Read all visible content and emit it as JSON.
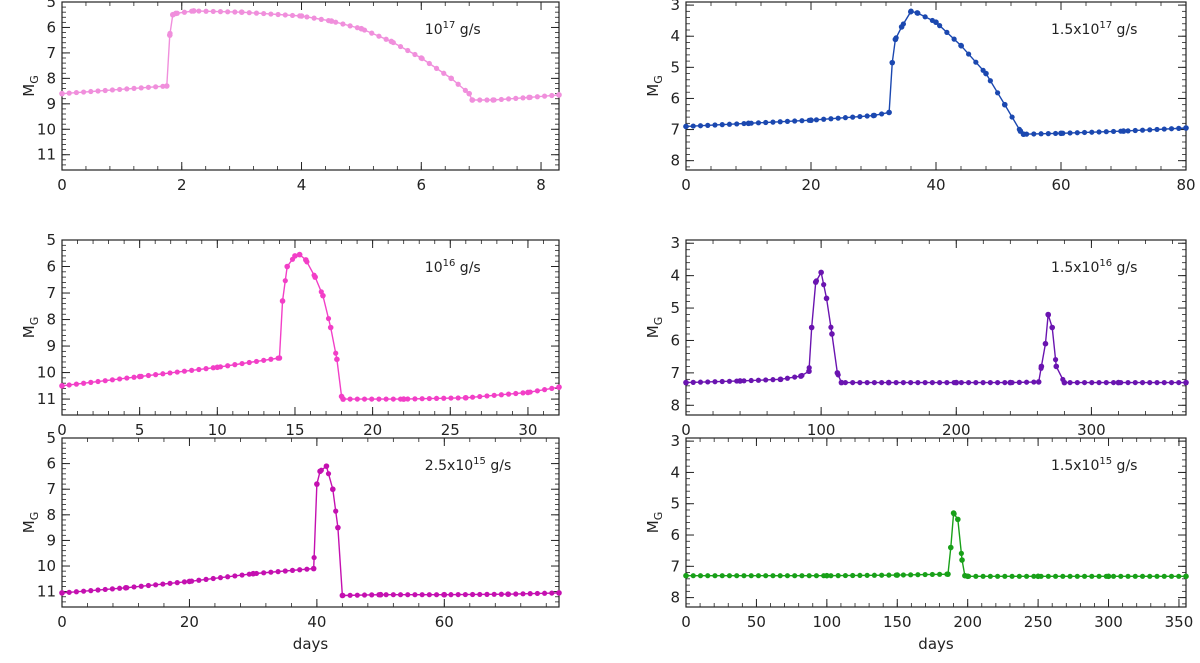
{
  "chart_data": [
    {
      "type": "line",
      "annotation": {
        "base": "10",
        "exp": "17",
        "unit": " g/s"
      },
      "ylabel": "M",
      "ylabel_sub": "G",
      "xlabel": "",
      "xlim": [
        0,
        8.3
      ],
      "ylim": [
        11.6,
        5
      ],
      "y_inverted": true,
      "xticks": [
        0,
        2,
        4,
        6,
        8
      ],
      "yticks": [
        5,
        6,
        7,
        8,
        9,
        10,
        11
      ],
      "color": "#f08fdc",
      "series": [
        {
          "x": [
            0,
            1.75,
            1.8,
            1.85,
            1.9,
            2.2,
            3.0,
            4.0,
            4.5,
            5.0,
            5.5,
            6.0,
            6.5,
            6.8,
            6.85,
            7.2,
            7.8,
            8.3
          ],
          "y": [
            8.6,
            8.3,
            6.3,
            5.5,
            5.45,
            5.35,
            5.4,
            5.55,
            5.75,
            6.05,
            6.55,
            7.2,
            8.0,
            8.6,
            8.85,
            8.85,
            8.75,
            8.65
          ]
        }
      ]
    },
    {
      "type": "line",
      "annotation": {
        "base": "1.5x10",
        "exp": "17",
        "unit": " g/s"
      },
      "ylabel": "M",
      "ylabel_sub": "G",
      "xlabel": "",
      "xlim": [
        0,
        80
      ],
      "ylim": [
        8.3,
        2.9
      ],
      "y_inverted": true,
      "xticks": [
        0,
        20,
        40,
        60,
        80
      ],
      "yticks": [
        3,
        4,
        5,
        6,
        7,
        8
      ],
      "color": "#1b48b0",
      "series": [
        {
          "x": [
            0,
            10,
            20,
            30,
            32.5,
            33,
            33.5,
            34.5,
            36,
            37,
            40,
            44,
            48,
            51,
            53.5,
            54,
            60,
            70,
            80
          ],
          "y": [
            6.9,
            6.8,
            6.7,
            6.55,
            6.45,
            4.85,
            4.1,
            3.7,
            3.2,
            3.25,
            3.55,
            4.3,
            5.2,
            6.2,
            7.05,
            7.15,
            7.12,
            7.05,
            6.95
          ]
        }
      ]
    },
    {
      "type": "line",
      "annotation": {
        "base": "10",
        "exp": "16",
        "unit": " g/s"
      },
      "ylabel": "M",
      "ylabel_sub": "G",
      "xlabel": "",
      "xlim": [
        0,
        32
      ],
      "ylim": [
        11.6,
        5
      ],
      "y_inverted": true,
      "xticks": [
        0,
        5,
        10,
        15,
        20,
        25,
        30
      ],
      "yticks": [
        5,
        6,
        7,
        8,
        9,
        10,
        11
      ],
      "color": "#f23fc7",
      "series": [
        {
          "x": [
            0,
            5,
            10,
            14,
            14.2,
            14.5,
            15.0,
            15.3,
            15.7,
            16.3,
            16.8,
            17.3,
            17.7,
            18.0,
            18.1,
            22,
            26,
            30,
            32
          ],
          "y": [
            10.5,
            10.15,
            9.8,
            9.45,
            7.3,
            6.0,
            5.6,
            5.55,
            5.75,
            6.4,
            7.1,
            8.3,
            9.5,
            10.9,
            11.0,
            11.0,
            10.95,
            10.75,
            10.55
          ]
        }
      ]
    },
    {
      "type": "line",
      "annotation": {
        "base": "1.5x10",
        "exp": "16",
        "unit": " g/s"
      },
      "ylabel": "M",
      "ylabel_sub": "G",
      "xlabel": "",
      "xlim": [
        0,
        370
      ],
      "ylim": [
        8.3,
        2.9
      ],
      "y_inverted": true,
      "xticks": [
        0,
        100,
        200,
        300
      ],
      "yticks": [
        3,
        4,
        5,
        6,
        7,
        8
      ],
      "color": "#6a14b0",
      "series": [
        {
          "x": [
            0,
            40,
            70,
            85,
            91,
            93,
            96,
            100,
            104,
            108,
            112,
            115,
            150,
            200,
            240,
            261,
            263,
            266,
            268,
            271,
            274,
            280,
            320,
            370
          ],
          "y": [
            7.3,
            7.25,
            7.2,
            7.1,
            6.95,
            5.6,
            4.2,
            3.9,
            4.7,
            5.8,
            7.0,
            7.3,
            7.3,
            7.3,
            7.3,
            7.28,
            6.8,
            6.1,
            5.2,
            5.6,
            6.8,
            7.3,
            7.3,
            7.3
          ]
        }
      ]
    },
    {
      "type": "line",
      "annotation": {
        "base": "2.5x10",
        "exp": "15",
        "unit": " g/s"
      },
      "ylabel": "M",
      "ylabel_sub": "G",
      "xlabel": "days",
      "xlim": [
        0,
        78
      ],
      "ylim": [
        11.6,
        5
      ],
      "y_inverted": true,
      "xticks": [
        0,
        20,
        40,
        60
      ],
      "yticks": [
        5,
        6,
        7,
        8,
        9,
        10,
        11
      ],
      "color": "#c410b0",
      "series": [
        {
          "x": [
            0,
            10,
            20,
            30,
            39.5,
            40,
            40.5,
            41.5,
            42.5,
            43.3,
            44,
            50,
            60,
            70,
            78
          ],
          "y": [
            11.05,
            10.85,
            10.6,
            10.3,
            10.1,
            6.8,
            6.3,
            6.1,
            7.0,
            8.5,
            11.15,
            11.12,
            11.12,
            11.1,
            11.05
          ]
        }
      ]
    },
    {
      "type": "line",
      "annotation": {
        "base": "1.5x10",
        "exp": "15",
        "unit": " g/s"
      },
      "ylabel": "M",
      "ylabel_sub": "G",
      "xlabel": "days",
      "xlim": [
        0,
        355
      ],
      "ylim": [
        8.3,
        2.9
      ],
      "y_inverted": true,
      "xticks": [
        0,
        50,
        100,
        150,
        200,
        250,
        300,
        350
      ],
      "yticks": [
        3,
        4,
        5,
        6,
        7,
        8
      ],
      "color": "#18a018",
      "series": [
        {
          "x": [
            0,
            100,
            150,
            186,
            188,
            190,
            193,
            196,
            198,
            200,
            250,
            300,
            355
          ],
          "y": [
            7.3,
            7.3,
            7.28,
            7.25,
            6.4,
            5.3,
            5.5,
            6.8,
            7.3,
            7.32,
            7.32,
            7.32,
            7.32
          ]
        }
      ]
    }
  ]
}
